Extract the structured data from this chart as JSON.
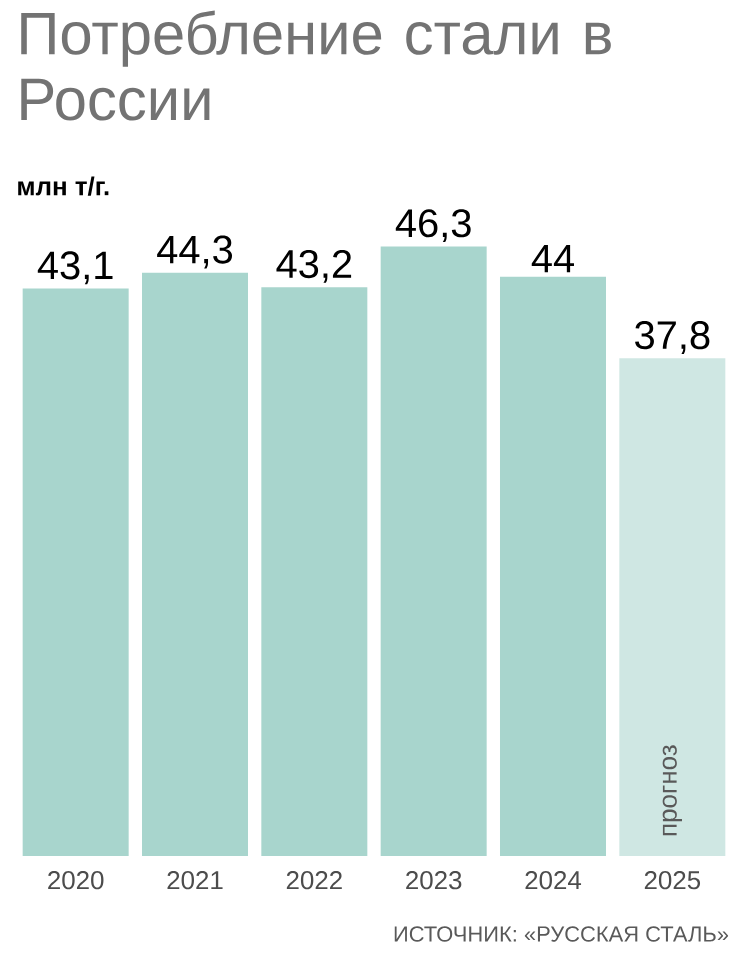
{
  "chart_data": {
    "type": "bar",
    "title": "Потребление стали в России",
    "subtitle": "млн т/г.",
    "categories": [
      "2020",
      "2021",
      "2022",
      "2023",
      "2024",
      "2025"
    ],
    "values": [
      43.1,
      44.3,
      43.2,
      46.3,
      44,
      37.8
    ],
    "value_labels": [
      "43,1",
      "44,3",
      "43,2",
      "46,3",
      "44",
      "37,8"
    ],
    "colors": [
      "#a8d5cd",
      "#a8d5cd",
      "#a8d5cd",
      "#a8d5cd",
      "#a8d5cd",
      "#cfe7e3"
    ],
    "annotations": [
      "прогноз",
      "ИСТОЧНИК: «РУССКАЯ СТАЛЬ»"
    ]
  }
}
